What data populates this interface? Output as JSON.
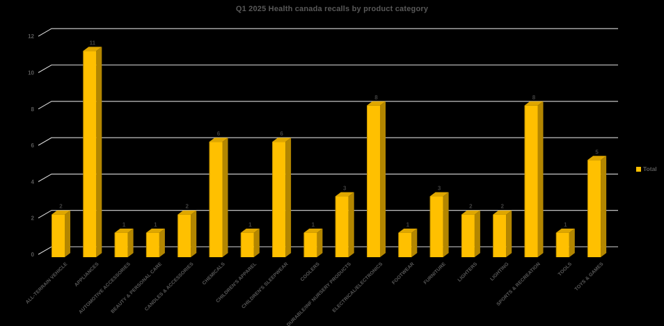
{
  "window": {
    "background": "#000000"
  },
  "chart_data": {
    "type": "bar",
    "title": "Q1 2025 Health canada recalls by product category",
    "xlabel": "",
    "ylabel": "",
    "ylim": [
      0,
      12
    ],
    "yticks": [
      0,
      2,
      4,
      6,
      8,
      10,
      12
    ],
    "grid": true,
    "effect": "3d-column",
    "legend_position": "right",
    "legend": [
      {
        "name": "Total",
        "color": "#FFC000"
      }
    ],
    "categories": [
      "ALL-TERRAIN VEHICLE",
      "APPLIANCES",
      "AUTOMOTIVE ACCESSORIES",
      "BEAUTY & PERSONAL CARE",
      "CANDLES & ACCESSORIES",
      "CHEMICALS",
      "CHILDREN'S APPAREL",
      "CHILDREN'S SLEEPWEAR",
      "COOLERS",
      "DURABLE/INF NURSERY PRODUCTS",
      "ELECTRICAL/ELECTRONICS",
      "FOOTWEAR",
      "FURNITURE",
      "LIGHTERS",
      "LIGHTING",
      "SPORTS & RECREATION",
      "TOOLS",
      "TOYS & GAMES"
    ],
    "series": [
      {
        "name": "Total",
        "values": [
          2,
          11,
          1,
          1,
          2,
          6,
          1,
          6,
          1,
          3,
          8,
          1,
          3,
          2,
          2,
          8,
          1,
          5
        ]
      }
    ],
    "style": {
      "bar_front": "#FFC000",
      "bar_top": "#DFA700",
      "bar_side": "#B38600",
      "bar_edge": "#8F6B00",
      "gridline": "#D9D9D9",
      "tick_text": "#595959",
      "category_text": "#595959",
      "value_text": "#404040",
      "background": "#000000"
    }
  }
}
